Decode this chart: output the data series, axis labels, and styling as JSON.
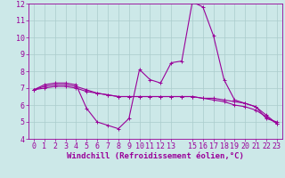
{
  "xlabel": "Windchill (Refroidissement éolien,°C)",
  "x": [
    0,
    1,
    2,
    3,
    4,
    5,
    6,
    7,
    8,
    9,
    10,
    11,
    12,
    13,
    14,
    15,
    16,
    17,
    18,
    19,
    20,
    21,
    22,
    23
  ],
  "line1": [
    6.9,
    7.2,
    7.3,
    7.3,
    7.2,
    5.8,
    5.0,
    4.8,
    4.6,
    5.2,
    8.1,
    7.5,
    7.3,
    8.5,
    8.6,
    12.1,
    11.8,
    10.1,
    7.5,
    6.3,
    6.1,
    5.9,
    5.2,
    5.0
  ],
  "line2": [
    6.9,
    7.1,
    7.2,
    7.2,
    7.1,
    6.9,
    6.7,
    6.6,
    6.5,
    6.5,
    6.5,
    6.5,
    6.5,
    6.5,
    6.5,
    6.5,
    6.4,
    6.4,
    6.3,
    6.2,
    6.1,
    5.9,
    5.4,
    4.9
  ],
  "line3": [
    6.9,
    7.0,
    7.1,
    7.1,
    7.0,
    6.8,
    6.7,
    6.6,
    6.5,
    6.5,
    6.5,
    6.5,
    6.5,
    6.5,
    6.5,
    6.5,
    6.4,
    6.3,
    6.2,
    6.0,
    5.9,
    5.7,
    5.3,
    4.9
  ],
  "line_color": "#990099",
  "bg_color": "#cce8e8",
  "grid_color": "#aacccc",
  "ylim": [
    4,
    12
  ],
  "xlim": [
    -0.5,
    23.5
  ],
  "yticks": [
    4,
    5,
    6,
    7,
    8,
    9,
    10,
    11,
    12
  ],
  "xticks": [
    0,
    1,
    2,
    3,
    4,
    5,
    6,
    7,
    8,
    9,
    10,
    11,
    12,
    13,
    15,
    16,
    17,
    18,
    19,
    20,
    21,
    22,
    23
  ],
  "marker": "+",
  "markersize": 3.5,
  "linewidth": 0.8,
  "xlabel_fontsize": 6.5,
  "tick_fontsize": 6.0
}
